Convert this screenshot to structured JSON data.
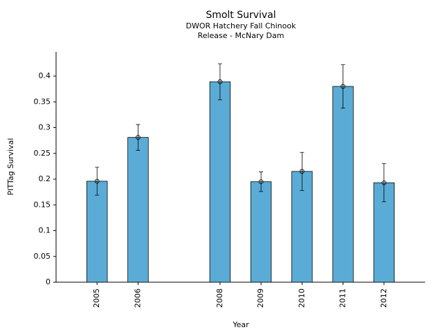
{
  "chart_data": {
    "type": "bar",
    "title": "Smolt Survival",
    "subtitle": [
      "DWOR Hatchery Fall Chinook",
      "Release - McNary Dam"
    ],
    "x_label": "Year",
    "y_label": "PITTag Survival",
    "x": [
      2005,
      2006,
      2008,
      2009,
      2010,
      2011,
      2012
    ],
    "values": [
      0.196,
      0.281,
      0.389,
      0.195,
      0.215,
      0.38,
      0.193
    ],
    "errors": [
      0.027,
      0.025,
      0.035,
      0.019,
      0.037,
      0.042,
      0.037
    ],
    "color": "#5aacd6",
    "xlim": [
      2004,
      2013
    ],
    "xticks": [
      2005,
      2006,
      2008,
      2009,
      2010,
      2011,
      2012
    ],
    "ylim": [
      0,
      0.447
    ],
    "yticks": [
      0,
      0.05,
      0.1,
      0.15,
      0.2,
      0.25,
      0.3,
      0.35,
      0.4
    ]
  }
}
